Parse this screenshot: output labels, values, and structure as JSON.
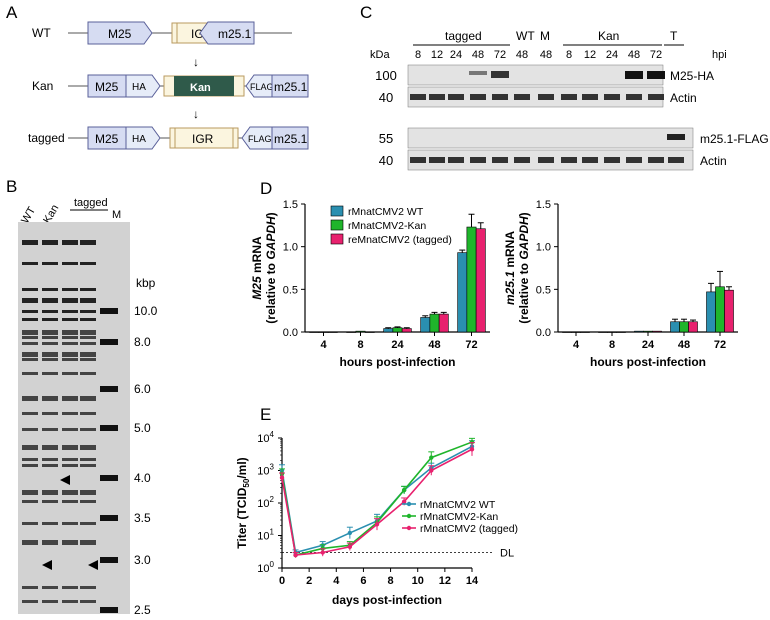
{
  "panels": {
    "A": {
      "letter": "A",
      "rows": [
        {
          "label": "WT",
          "left": "M25",
          "mid": "IGR",
          "right": "m25.1",
          "ha": "",
          "flag": ""
        },
        {
          "label": "Kan",
          "left": "M25",
          "mid": "Kan",
          "right": "m25.1",
          "ha": "HA",
          "flag": "FLAG"
        },
        {
          "label": "tagged",
          "left": "M25",
          "mid": "IGR",
          "right": "m25.1",
          "ha": "HA",
          "flag": "FLAG"
        }
      ]
    },
    "B": {
      "letter": "B",
      "lanes": [
        "WT",
        "Kan",
        "tagged",
        "M"
      ],
      "unit": "kbp",
      "markers": [
        "10.0",
        "8.0",
        "6.0",
        "5.0",
        "4.0",
        "3.5",
        "3.0",
        "2.5"
      ],
      "marker_kbp": [
        10.0,
        8.0,
        6.0,
        5.0,
        4.0,
        3.5,
        3.0,
        2.5
      ]
    },
    "C": {
      "letter": "C",
      "groups": [
        "tagged",
        "WT",
        "M",
        "Kan",
        "T"
      ],
      "timepoints": [
        "8",
        "12",
        "24",
        "48",
        "72",
        "48",
        "48",
        "8",
        "12",
        "24",
        "48",
        "72"
      ],
      "hpi": "hpi",
      "kda": "kDa",
      "blots": [
        {
          "mw": "100",
          "label": "M25-HA"
        },
        {
          "mw": "40",
          "label": "Actin"
        },
        {
          "mw": "55",
          "label": "m25.1-FLAG"
        },
        {
          "mw": "40",
          "label": "Actin"
        }
      ]
    },
    "D": {
      "letter": "D"
    },
    "E": {
      "letter": "E"
    }
  },
  "chart_data": [
    {
      "type": "bar",
      "categories": [
        "4",
        "8",
        "24",
        "48",
        "72"
      ],
      "ylabel_italic": "M25",
      "ylabel_rest": " mRNA",
      "ylabel_line2_prefix": "(relative to ",
      "ylabel_line2_italic": "GAPDH",
      "ylabel_line2_suffix": ")",
      "xlabel": "hours post-infection",
      "ylim": [
        0,
        1.5
      ],
      "yticks": [
        "0.0",
        "0.5",
        "1.0",
        "1.5"
      ],
      "series": [
        {
          "name": "rMnatCMV2 WT",
          "color": "#2a8fb0",
          "values": [
            0.0,
            0.0,
            0.04,
            0.17,
            0.93
          ],
          "errors": [
            0.0,
            0.0,
            0.01,
            0.02,
            0.03
          ]
        },
        {
          "name": "rMnatCMV2-Kan",
          "color": "#1fb52b",
          "values": [
            0.0,
            0.01,
            0.05,
            0.21,
            1.23
          ],
          "errors": [
            0.0,
            0.0,
            0.01,
            0.02,
            0.15
          ]
        },
        {
          "name": "reMnatCMV2 (tagged)",
          "color": "#e8216e",
          "values": [
            0.0,
            0.0,
            0.04,
            0.21,
            1.21
          ],
          "errors": [
            0.0,
            0.0,
            0.01,
            0.02,
            0.07
          ]
        }
      ]
    },
    {
      "type": "bar",
      "categories": [
        "4",
        "8",
        "24",
        "48",
        "72"
      ],
      "ylabel_italic": "m25.1",
      "ylabel_rest": " mRNA",
      "ylabel_line2_prefix": "(relative to ",
      "ylabel_line2_italic": "GAPDH",
      "ylabel_line2_suffix": ")",
      "xlabel": "hours post-infection",
      "ylim": [
        0,
        1.5
      ],
      "yticks": [
        "0.0",
        "0.5",
        "1.0",
        "1.5"
      ],
      "series": [
        {
          "name": "rMnatCMV2 WT",
          "color": "#2a8fb0",
          "values": [
            0.0,
            0.0,
            0.01,
            0.12,
            0.47
          ],
          "errors": [
            0.0,
            0.0,
            0.0,
            0.03,
            0.1
          ]
        },
        {
          "name": "rMnatCMV2-Kan",
          "color": "#1fb52b",
          "values": [
            0.0,
            0.0,
            0.01,
            0.12,
            0.53
          ],
          "errors": [
            0.0,
            0.0,
            0.0,
            0.03,
            0.18
          ]
        },
        {
          "name": "reMnatCMV2 (tagged)",
          "color": "#e8216e",
          "values": [
            0.0,
            0.0,
            0.01,
            0.12,
            0.49
          ],
          "errors": [
            0.0,
            0.0,
            0.0,
            0.02,
            0.04
          ]
        }
      ]
    },
    {
      "type": "line",
      "x": [
        0,
        1,
        3,
        5,
        7,
        9,
        11,
        14
      ],
      "xticks": [
        "0",
        "2",
        "4",
        "6",
        "8",
        "10",
        "12",
        "14"
      ],
      "xlim": [
        0,
        14
      ],
      "ylim_log10": [
        0,
        4
      ],
      "ylabel": "Titer (TCID",
      "ylabel_sub": "50",
      "ylabel_end": "/ml)",
      "xlabel": "days post-infection",
      "dl_label": "DL",
      "dl_value": 3,
      "series": [
        {
          "name": "rMnatCMV2 WT",
          "color": "#2a8fb0",
          "values": [
            1000,
            3,
            5,
            12,
            28,
            250,
            1200,
            5500
          ],
          "err_factor": [
            1.5,
            1.2,
            1.3,
            1.5,
            1.6,
            1.3,
            1.4,
            1.5
          ]
        },
        {
          "name": "rMnatCMV2-Kan",
          "color": "#1fb52b",
          "values": [
            800,
            2.5,
            4,
            5,
            25,
            250,
            2500,
            7500
          ],
          "err_factor": [
            1.4,
            1.2,
            1.3,
            1.3,
            1.5,
            1.3,
            1.5,
            1.3
          ]
        },
        {
          "name": "rMnatCMV2 (tagged)",
          "color": "#e8216e",
          "values": [
            600,
            2.5,
            3,
            4.5,
            22,
            110,
            1000,
            4500
          ],
          "err_factor": [
            1.4,
            1.2,
            1.3,
            1.3,
            1.5,
            1.3,
            1.4,
            1.6
          ]
        }
      ]
    }
  ]
}
